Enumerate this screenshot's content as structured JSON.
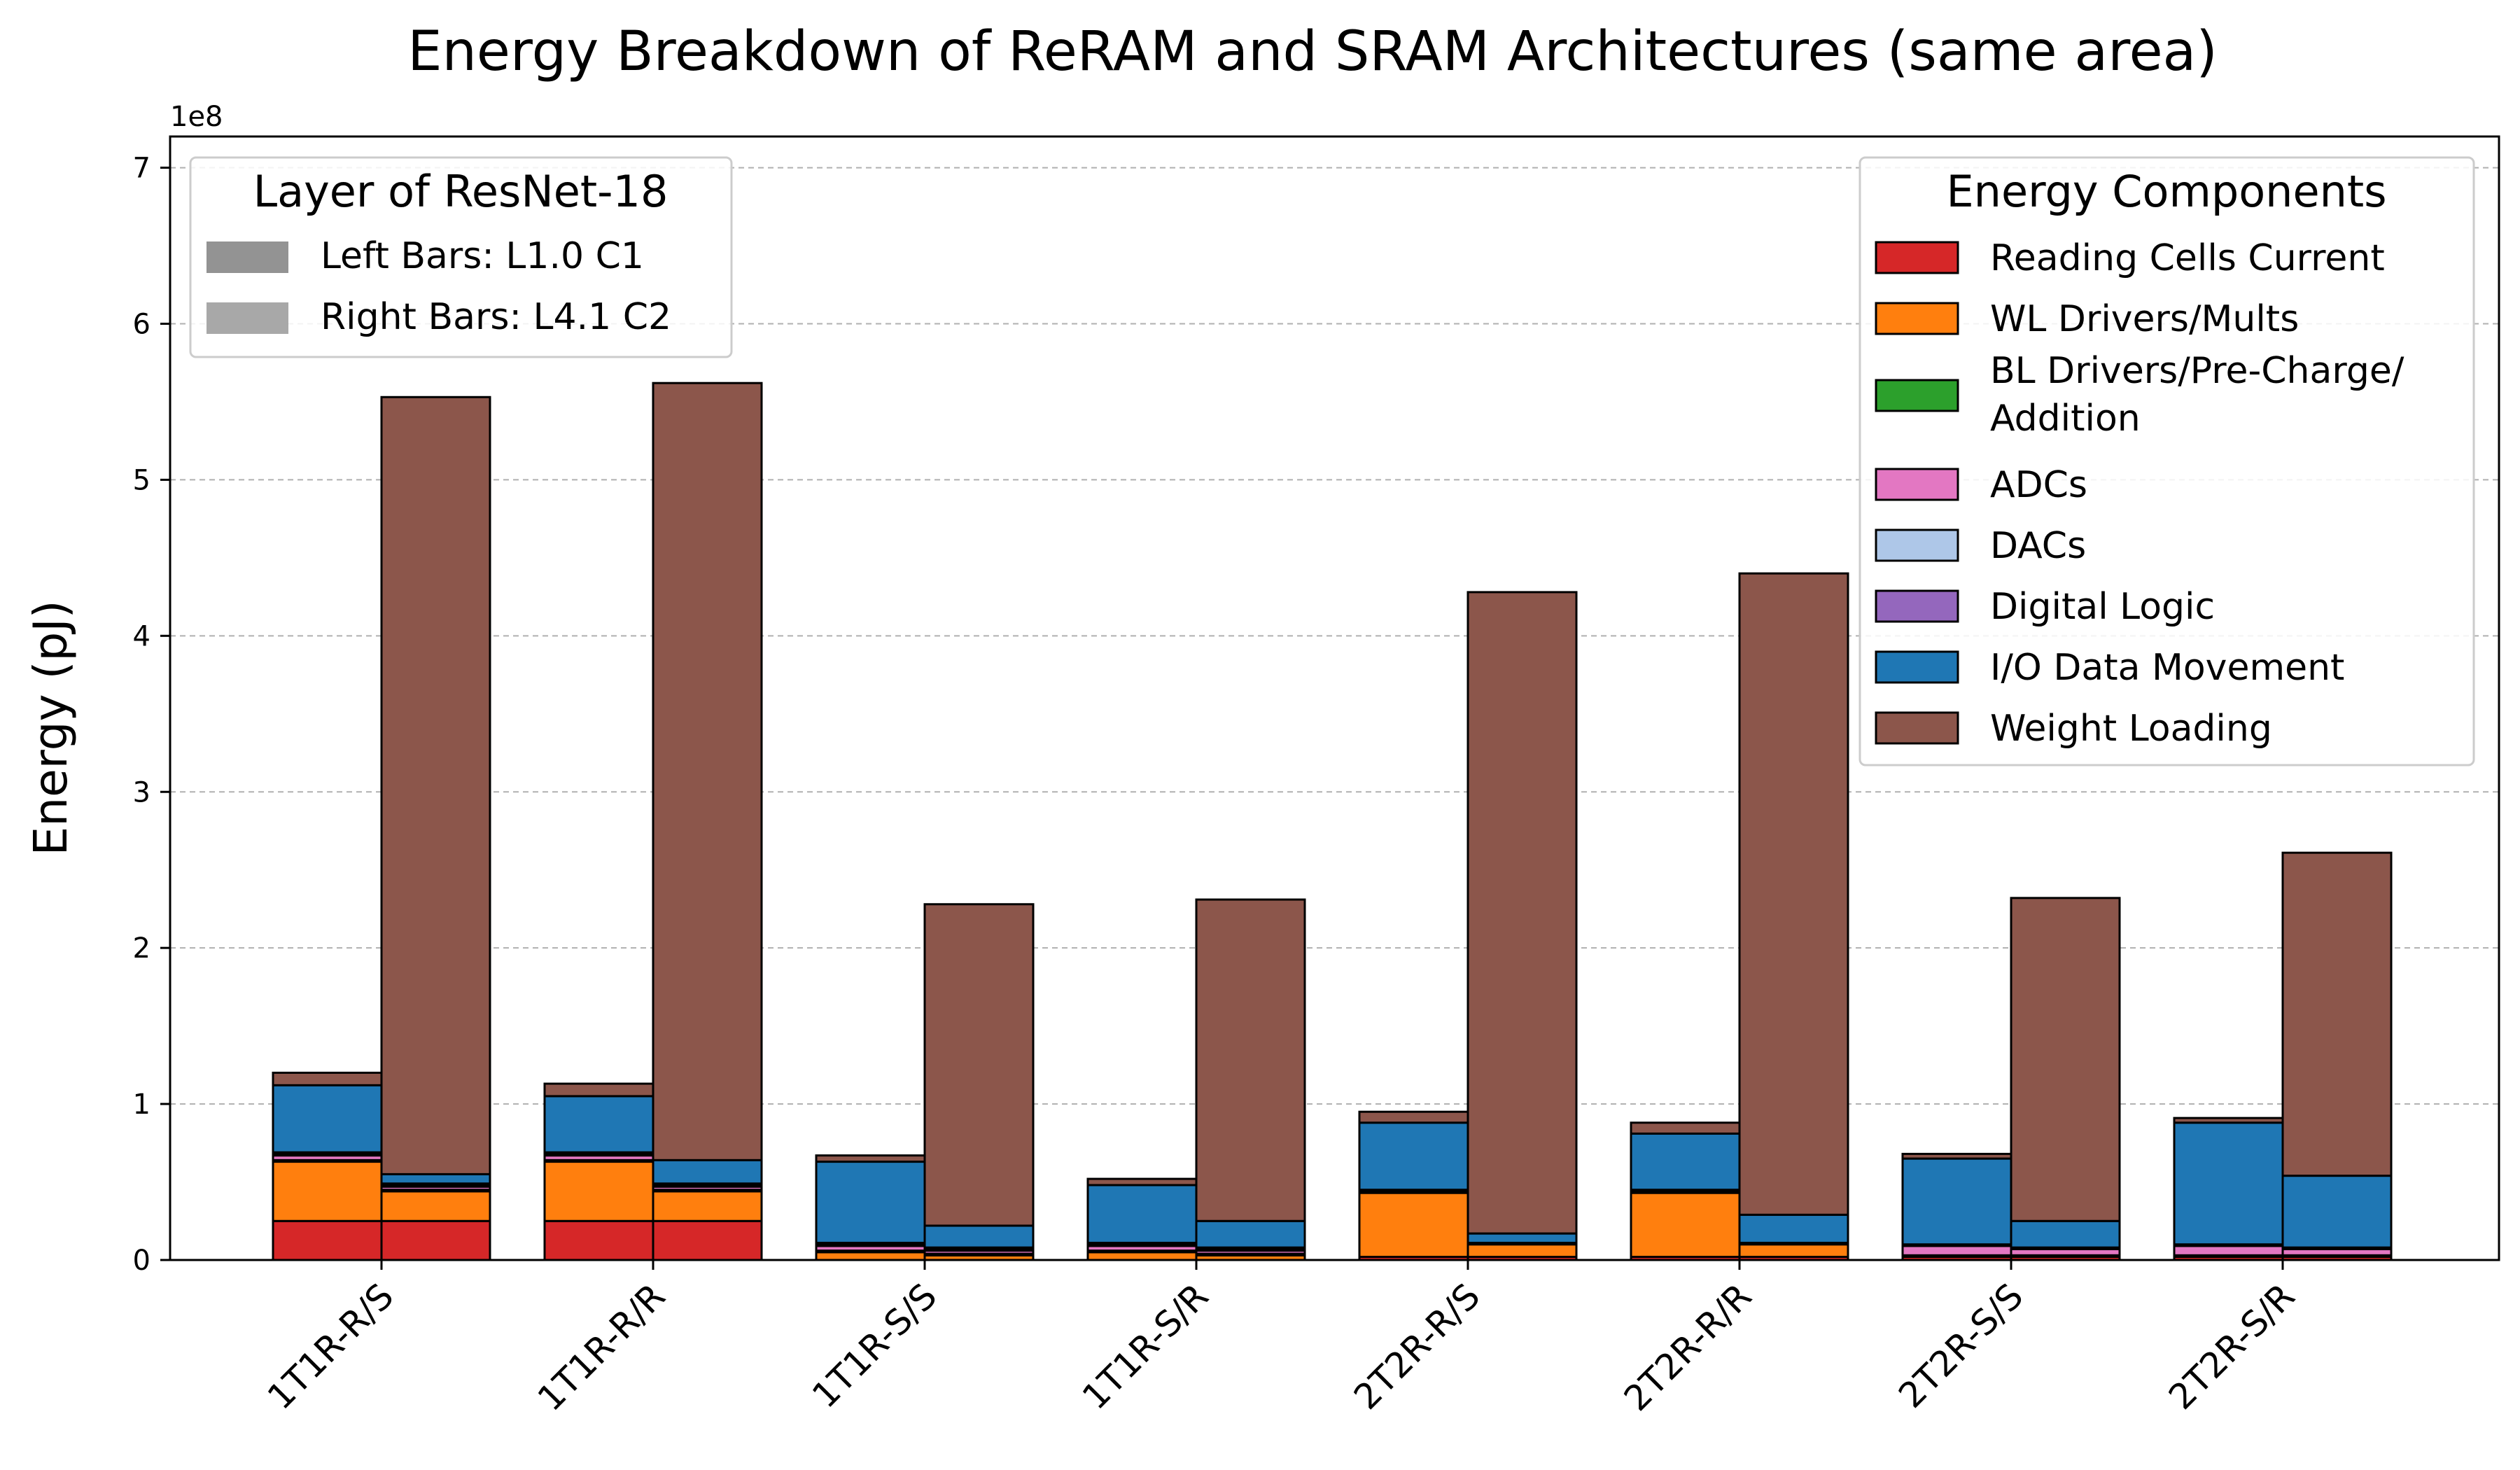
{
  "chart_data": {
    "type": "bar",
    "title": "Energy Breakdown of ReRAM and SRAM Architectures (same area)",
    "ylabel": "Energy (pJ)",
    "xlabel": "",
    "y_scale_label": "1e8",
    "ylim": [
      0,
      7.2
    ],
    "yticks": [
      "0",
      "1",
      "2",
      "3",
      "4",
      "5",
      "6",
      "7"
    ],
    "grid": "horizontal dashed",
    "categories": [
      "1T1R-R/S",
      "1T1R-R/R",
      "1T1R-S/S",
      "1T1R-S/R",
      "2T2R-R/S",
      "2T2R-R/R",
      "2T2R-S/S",
      "2T2R-S/R"
    ],
    "layer_legend": {
      "title": "Layer of ResNet-18",
      "placement": "top-left",
      "entries": [
        {
          "label": "Left Bars: L1.0 C1",
          "color": "#939393"
        },
        {
          "label": "Right Bars: L4.1 C2",
          "color": "#a8a8a8"
        }
      ]
    },
    "component_legend": {
      "title": "Energy Components",
      "placement": "top-right"
    },
    "components": [
      {
        "name": "Reading Cells Current",
        "color": "#d62728"
      },
      {
        "name": "WL Drivers/Mults",
        "color": "#ff7f0e"
      },
      {
        "name": "BL Drivers/Pre-Charge/\nAddition",
        "color": "#2ca02c"
      },
      {
        "name": "ADCs",
        "color": "#e377c2"
      },
      {
        "name": "DACs",
        "color": "#aec7e8"
      },
      {
        "name": "Digital Logic",
        "color": "#9467bd"
      },
      {
        "name": "I/O Data Movement",
        "color": "#1f77b4"
      },
      {
        "name": "Weight Loading",
        "color": "#8c564b"
      }
    ],
    "series": [
      {
        "layer": "L1.0 C1",
        "values": [
          [
            0.25,
            0.38,
            0.01,
            0.03,
            0.01,
            0.01,
            0.43,
            0.08
          ],
          [
            0.25,
            0.38,
            0.01,
            0.03,
            0.01,
            0.01,
            0.36,
            0.08
          ],
          [
            0.0,
            0.05,
            0.01,
            0.03,
            0.01,
            0.01,
            0.52,
            0.04
          ],
          [
            0.0,
            0.05,
            0.01,
            0.03,
            0.01,
            0.01,
            0.37,
            0.04
          ],
          [
            0.02,
            0.41,
            0.01,
            0.0,
            0.0,
            0.01,
            0.43,
            0.07
          ],
          [
            0.02,
            0.41,
            0.01,
            0.0,
            0.0,
            0.01,
            0.36,
            0.07
          ],
          [
            0.02,
            0.0,
            0.01,
            0.06,
            0.0,
            0.01,
            0.55,
            0.03
          ],
          [
            0.02,
            0.0,
            0.01,
            0.06,
            0.0,
            0.01,
            0.78,
            0.03
          ]
        ]
      },
      {
        "layer": "L4.1 C2",
        "values": [
          [
            0.25,
            0.19,
            0.01,
            0.02,
            0.01,
            0.01,
            0.06,
            4.98
          ],
          [
            0.25,
            0.19,
            0.01,
            0.02,
            0.01,
            0.01,
            0.15,
            4.98
          ],
          [
            0.0,
            0.03,
            0.01,
            0.02,
            0.01,
            0.01,
            0.14,
            2.06
          ],
          [
            0.0,
            0.03,
            0.01,
            0.02,
            0.01,
            0.01,
            0.17,
            2.06
          ],
          [
            0.02,
            0.08,
            0.01,
            0.0,
            0.0,
            0.0,
            0.06,
            4.11
          ],
          [
            0.02,
            0.08,
            0.01,
            0.0,
            0.0,
            0.0,
            0.18,
            4.11
          ],
          [
            0.02,
            0.0,
            0.01,
            0.04,
            0.0,
            0.01,
            0.17,
            2.07
          ],
          [
            0.02,
            0.0,
            0.01,
            0.04,
            0.0,
            0.01,
            0.46,
            2.07
          ]
        ]
      }
    ]
  }
}
